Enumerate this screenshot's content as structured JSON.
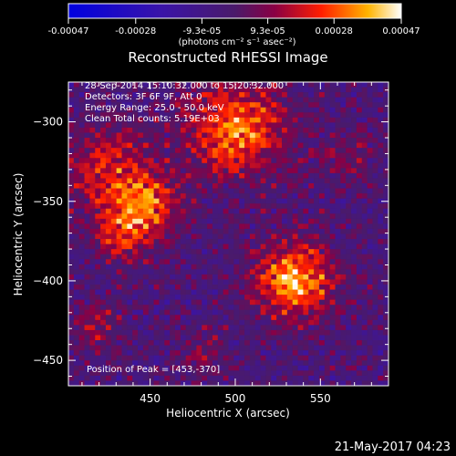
{
  "chart_data": {
    "type": "heatmap",
    "title": "Reconstructed RHESSI Image",
    "xlabel": "Heliocentric X (arcsec)",
    "ylabel": "Heliocentric Y (arcsec)",
    "xlim": [
      402,
      590
    ],
    "ylim": [
      -466,
      -275
    ],
    "xticks": [
      450,
      500,
      550
    ],
    "yticks": [
      -300,
      -350,
      -400,
      -450
    ],
    "colorbar": {
      "label": "(photons cm⁻² s⁻¹ asec⁻²)",
      "min": -0.00047,
      "max": 0.00047,
      "ticks": [
        {
          "value": -0.00047,
          "label": "-0.00047"
        },
        {
          "value": -0.00028,
          "label": "-0.00028"
        },
        {
          "value": -9.3e-05,
          "label": "-9.3e-05"
        },
        {
          "value": 9.3e-05,
          "label": "9.3e-05"
        },
        {
          "value": 0.00028,
          "label": "0.00028"
        },
        {
          "value": 0.00047,
          "label": "0.00047"
        }
      ]
    },
    "grid": {
      "cols": 60,
      "rows": 60
    },
    "sources": [
      {
        "x": 425,
        "y": -330,
        "sigma": 18,
        "amp": 0.00024
      },
      {
        "x": 448,
        "y": -353,
        "sigma": 14,
        "amp": 0.0003
      },
      {
        "x": 433,
        "y": -372,
        "sigma": 12,
        "amp": 0.00022
      },
      {
        "x": 500,
        "y": -305,
        "sigma": 20,
        "amp": 0.00036
      },
      {
        "x": 535,
        "y": -400,
        "sigma": 16,
        "amp": 0.00042
      },
      {
        "x": 418,
        "y": -430,
        "sigma": 11,
        "amp": 0.00016
      },
      {
        "x": 480,
        "y": -445,
        "sigma": 10,
        "amp": 0.00012
      },
      {
        "x": 565,
        "y": -320,
        "sigma": 12,
        "amp": 0.00012
      }
    ],
    "annotations": [
      "28-Sep-2014 15:10:32.000 to 15:20:32.000",
      "Detectors: 3F 6F 9F, Att 0",
      "Energy Range: 25.0 - 50.0 keV",
      "Clean     Total counts: 5.19E+03"
    ],
    "peak_label": "Position of Peak = [453,-370]",
    "timestamp": "21-May-2017 04:23"
  }
}
